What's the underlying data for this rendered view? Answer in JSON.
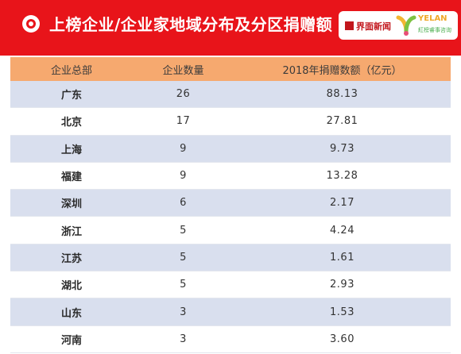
{
  "header": {
    "title": "上榜企业/企业家地域分布及分区捐赠额",
    "brand_jiemian": "界面新闻",
    "brand_yelan": "YELAN",
    "brand_yelan_sub": "紅榜睿事咨询"
  },
  "chart_data": {
    "type": "table",
    "columns": [
      "企业总部",
      "企业数量",
      "2018年捐赠数额（亿元）"
    ],
    "rows": [
      {
        "region": "广东",
        "count": "26",
        "amount": "88.13"
      },
      {
        "region": "北京",
        "count": "17",
        "amount": "27.81"
      },
      {
        "region": "上海",
        "count": "9",
        "amount": "9.73"
      },
      {
        "region": "福建",
        "count": "9",
        "amount": "13.28"
      },
      {
        "region": "深圳",
        "count": "6",
        "amount": "2.17"
      },
      {
        "region": "浙江",
        "count": "5",
        "amount": "4.24"
      },
      {
        "region": "江苏",
        "count": "5",
        "amount": "1.61"
      },
      {
        "region": "湖北",
        "count": "5",
        "amount": "2.93"
      },
      {
        "region": "山东",
        "count": "3",
        "amount": "1.53"
      },
      {
        "region": "河南",
        "count": "3",
        "amount": "3.60"
      }
    ]
  },
  "colors": {
    "header_bg": "#e8141a",
    "table_header_bg": "#f6a96f",
    "stripe_bg": "#d9dfee"
  }
}
